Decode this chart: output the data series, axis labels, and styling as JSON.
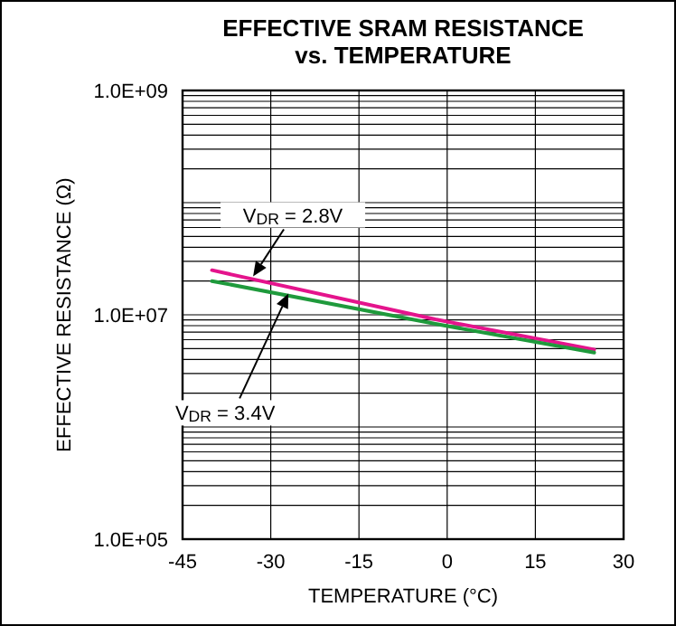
{
  "chart_data": {
    "type": "line",
    "title": "EFFECTIVE SRAM RESISTANCE\nvs. TEMPERATURE",
    "xlabel": "TEMPERATURE (°C)",
    "ylabel": "EFFECTIVE RESISTANCE (Ω)",
    "log": "y",
    "grid": true,
    "xlim": [
      -45,
      30
    ],
    "xticks": [
      -45,
      -30,
      -15,
      0,
      15,
      30
    ],
    "ylim": [
      100000,
      1000000000
    ],
    "yticks": [
      {
        "value": 100000,
        "label": "1.0E+05"
      },
      {
        "value": 10000000,
        "label": "1.0E+07"
      },
      {
        "value": 1000000000,
        "label": "1.0E+09"
      }
    ],
    "series": [
      {
        "color": "#e4148c",
        "x": [
          -40,
          -2,
          25
        ],
        "values": [
          25000000,
          9100000,
          4900000
        ]
      },
      {
        "color": "#1f9a3c",
        "x": [
          -40,
          -2,
          25
        ],
        "values": [
          20000000,
          8300000,
          4600000
        ]
      }
    ],
    "annotations": [
      {
        "text": "V$_{DR}$ = 2.8V",
        "x": -33,
        "y": 22000000
      },
      {
        "text": "V$_{DR}$ = 3.4V",
        "x": -27,
        "y": 15500000
      }
    ]
  }
}
